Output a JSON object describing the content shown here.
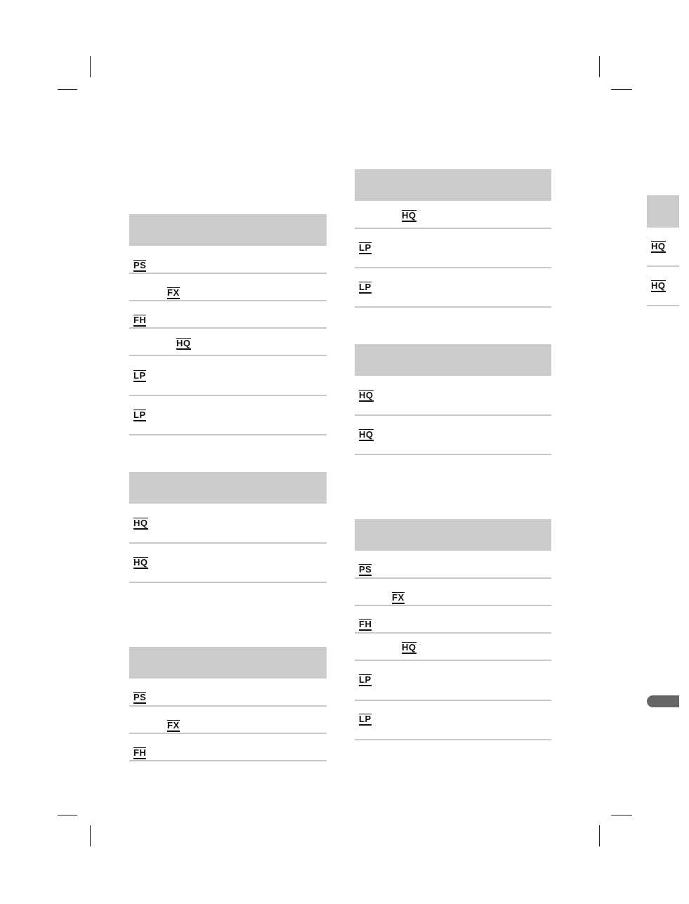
{
  "tables": [
    {
      "rows": [
        "PS",
        "FX",
        "FH",
        "HQ",
        "LP",
        "LP"
      ]
    },
    {
      "rows": [
        "HQ",
        "HQ"
      ]
    },
    {
      "rows": [
        "PS",
        "FX",
        "FH"
      ]
    },
    {
      "rows": [
        "HQ",
        "LP",
        "LP"
      ]
    },
    {
      "rows": [
        "HQ",
        "HQ"
      ]
    },
    {
      "rows": [
        "PS",
        "FX",
        "FH",
        "HQ",
        "LP",
        "LP"
      ]
    }
  ],
  "side_index": {
    "rows": [
      "HQ",
      "HQ"
    ]
  },
  "colors": {
    "header_fill": "#cccccc",
    "rule": "#c8c8c8",
    "tab_dark": "#666666"
  }
}
